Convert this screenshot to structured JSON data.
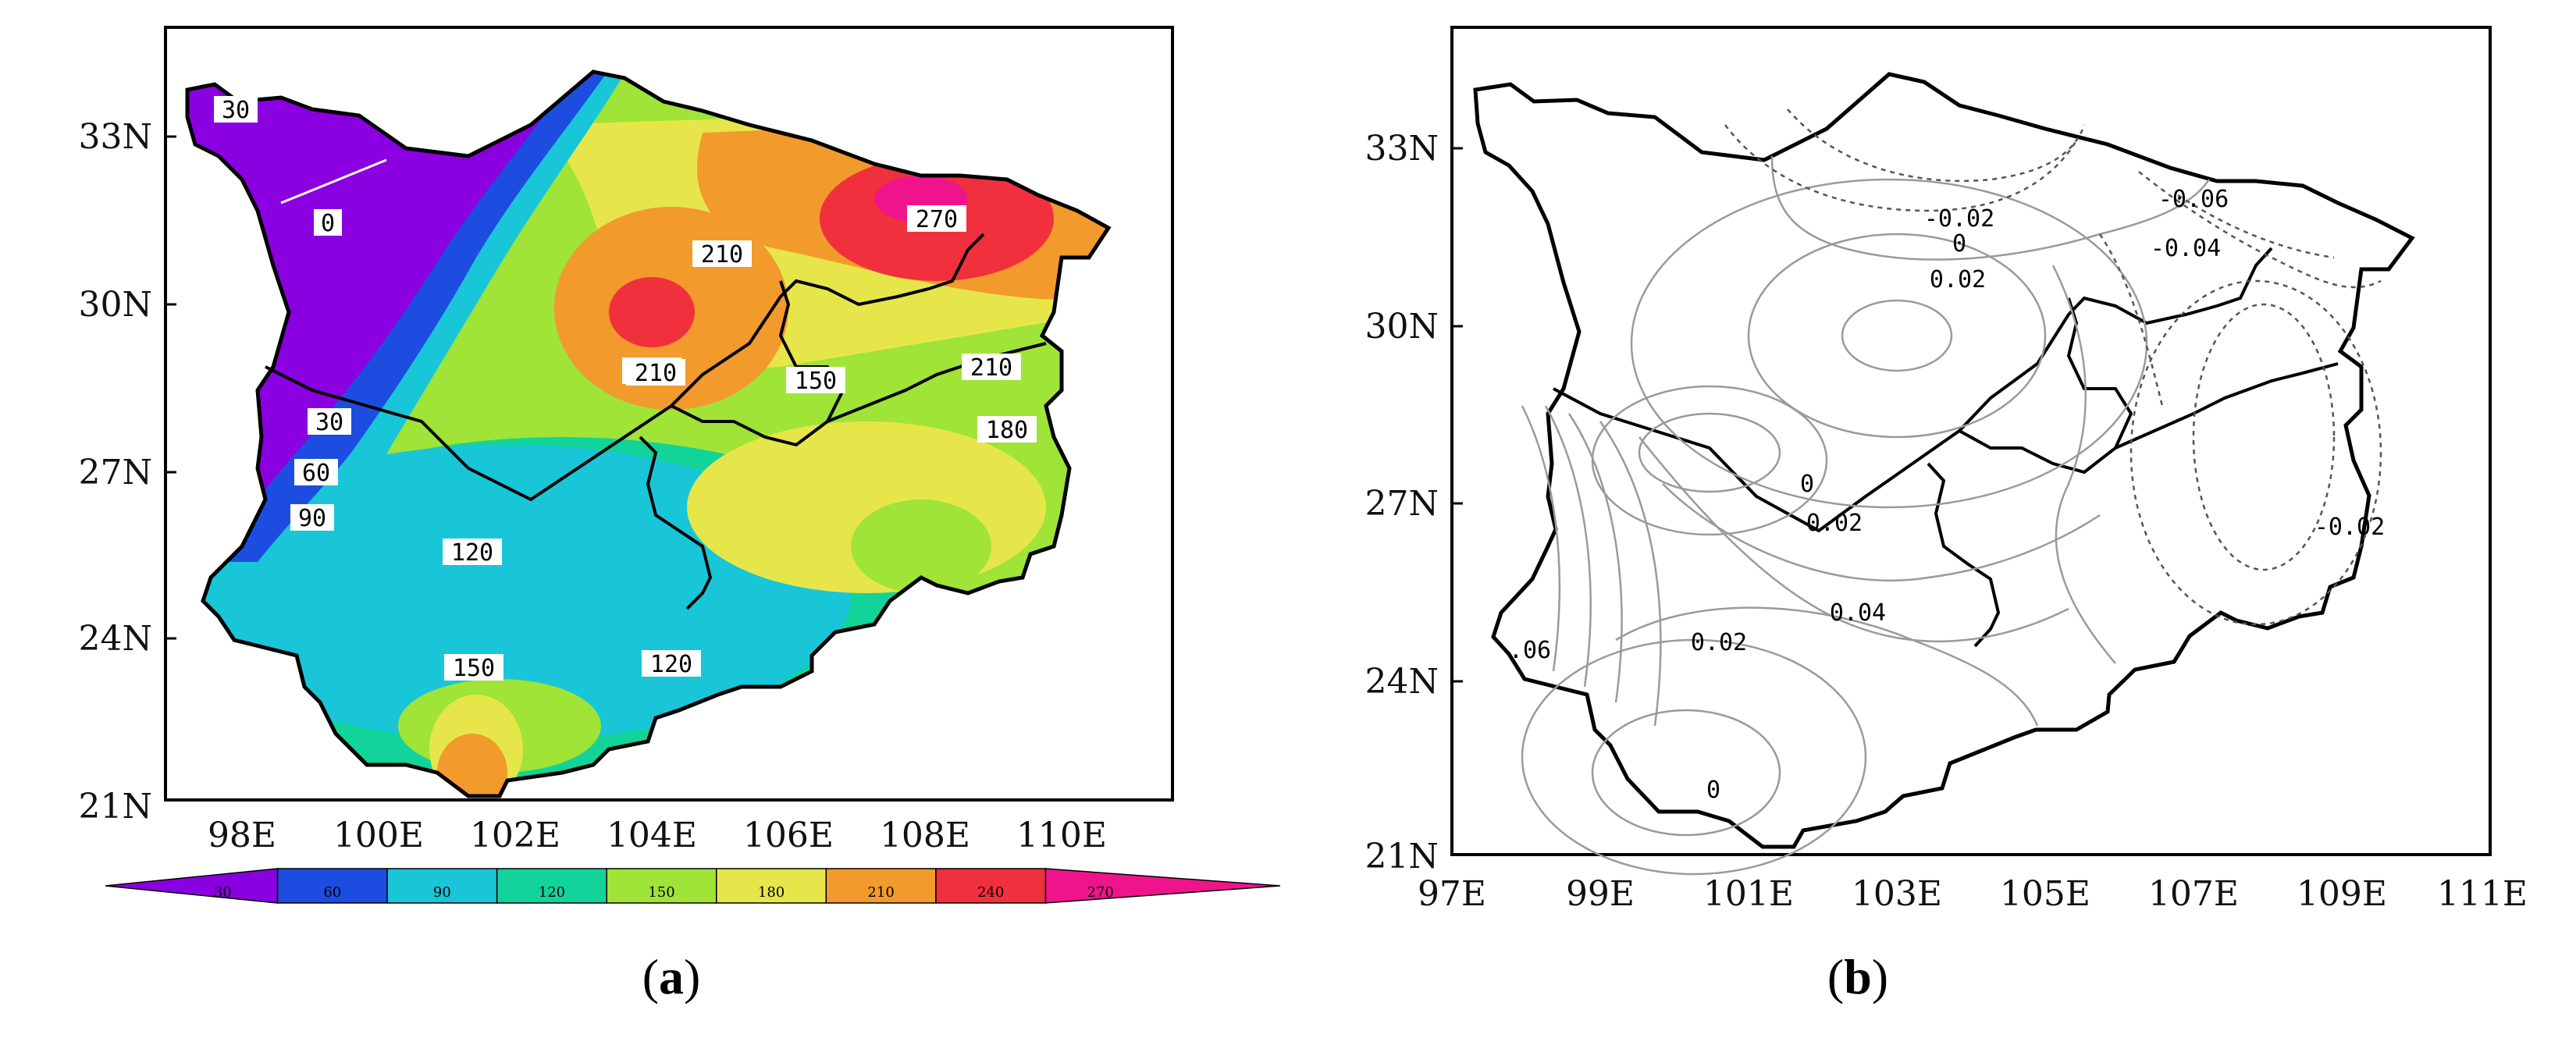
{
  "panel_a": {
    "caption_open": "(",
    "caption_letter": "a",
    "caption_close": ")",
    "lat_labels": [
      "33N",
      "30N",
      "27N",
      "24N",
      "21N"
    ],
    "lon_labels": [
      "98E",
      "100E",
      "102E",
      "104E",
      "106E",
      "108E",
      "110E"
    ],
    "colorbar": {
      "ticks": [
        "30",
        "60",
        "90",
        "120",
        "150",
        "180",
        "210",
        "240",
        "270"
      ],
      "colors": [
        "#8a00e0",
        "#1d4de0",
        "#18c6d8",
        "#12d49a",
        "#9fe437",
        "#e6e64a",
        "#f29a2c",
        "#f0303c",
        "#f0148c"
      ]
    },
    "contour_labels": [
      "30",
      "0",
      "210",
      "270",
      "210",
      "210",
      "150",
      "210",
      "180",
      "30",
      "60",
      "90",
      "120",
      "150",
      "120"
    ]
  },
  "panel_b": {
    "caption_open": "(",
    "caption_letter": "b",
    "caption_close": ")",
    "lat_labels": [
      "33N",
      "30N",
      "27N",
      "24N",
      "21N"
    ],
    "lon_labels": [
      "97E",
      "99E",
      "101E",
      "103E",
      "105E",
      "107E",
      "109E",
      "111E"
    ],
    "contour_labels": [
      "-0.02",
      "-0.06",
      "0",
      "-0.04",
      "0.02",
      "0",
      "0.02",
      "-0.02",
      "0.04",
      "0.02",
      ".06",
      "0"
    ]
  }
}
